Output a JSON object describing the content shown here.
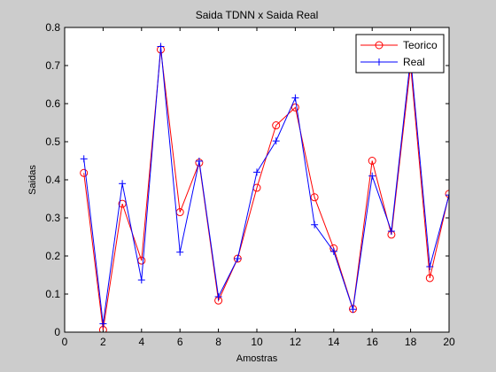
{
  "chart_data": {
    "type": "line",
    "title": "Saida TDNN x Saida Real",
    "xlabel": "Amostras",
    "ylabel": "Saidas",
    "xlim": [
      0,
      20
    ],
    "ylim": [
      0,
      0.8
    ],
    "xticks": [
      0,
      2,
      4,
      6,
      8,
      10,
      12,
      14,
      16,
      18,
      20
    ],
    "yticks": [
      0,
      0.1,
      0.2,
      0.3,
      0.4,
      0.5,
      0.6,
      0.7,
      0.8
    ],
    "grid": false,
    "legend_position": "top-right",
    "x": [
      1,
      2,
      3,
      4,
      5,
      6,
      7,
      8,
      9,
      10,
      11,
      12,
      13,
      14,
      15,
      16,
      17,
      18,
      19,
      20
    ],
    "series": [
      {
        "name": "Teorico",
        "color": "#ff0000",
        "marker": "circle",
        "values": [
          0.418,
          0.006,
          0.337,
          0.188,
          0.742,
          0.315,
          0.445,
          0.083,
          0.193,
          0.379,
          0.543,
          0.59,
          0.354,
          0.22,
          0.061,
          0.45,
          0.256,
          0.7,
          0.142,
          0.363
        ]
      },
      {
        "name": "Real",
        "color": "#0000ff",
        "marker": "plus",
        "values": [
          0.455,
          0.022,
          0.39,
          0.137,
          0.75,
          0.21,
          0.449,
          0.093,
          0.193,
          0.42,
          0.502,
          0.615,
          0.282,
          0.212,
          0.06,
          0.41,
          0.265,
          0.72,
          0.172,
          0.36
        ]
      }
    ]
  }
}
